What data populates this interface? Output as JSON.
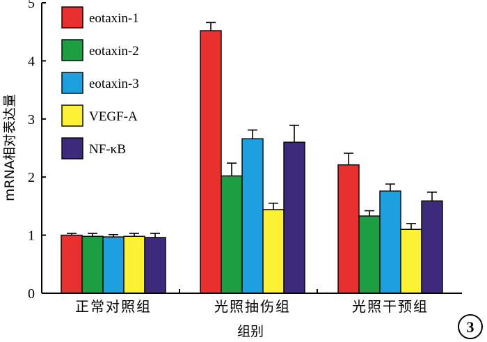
{
  "chart_data": {
    "type": "bar",
    "xlabel": "组别",
    "ylabel": "mRNA相对表达量",
    "ylim": [
      0,
      5
    ],
    "yticks": [
      "0",
      "1",
      "2",
      "3",
      "4",
      "5"
    ],
    "categories": [
      "正常对照组",
      "光照抽伤组",
      "光照干预组"
    ],
    "series": [
      {
        "name": "eotaxin-1",
        "color": "#e8312f",
        "values": [
          1.0,
          4.52,
          2.21
        ],
        "errors": [
          0.03,
          0.14,
          0.2
        ]
      },
      {
        "name": "eotaxin-2",
        "color": "#1e9e43",
        "values": [
          0.98,
          2.02,
          1.33
        ],
        "errors": [
          0.05,
          0.22,
          0.09
        ]
      },
      {
        "name": "eotaxin-3",
        "color": "#1e9fe0",
        "values": [
          0.97,
          2.66,
          1.76
        ],
        "errors": [
          0.04,
          0.15,
          0.12
        ]
      },
      {
        "name": "VEGF-A",
        "color": "#fdf135",
        "values": [
          0.98,
          1.44,
          1.1
        ],
        "errors": [
          0.05,
          0.11,
          0.1
        ]
      },
      {
        "name": "NF-κB",
        "color": "#3e2a7a",
        "values": [
          0.96,
          2.6,
          1.59
        ],
        "errors": [
          0.07,
          0.29,
          0.15
        ]
      }
    ],
    "legend": "top-left",
    "grid": false
  },
  "badge": "3"
}
